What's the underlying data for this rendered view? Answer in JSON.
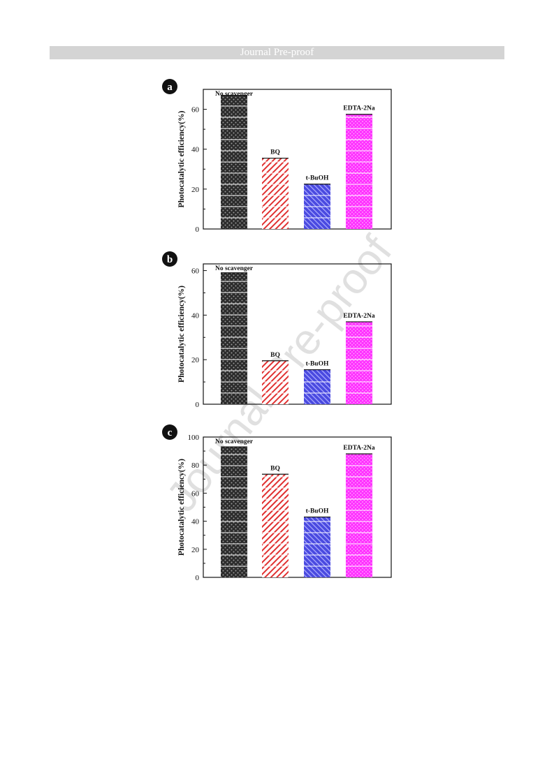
{
  "header": {
    "title": "Journal Pre-proof"
  },
  "watermark": {
    "text": "Journal Pre-proof"
  },
  "chart_data": [
    {
      "panel": "a",
      "type": "bar",
      "categories": [
        "No scavenger",
        "BQ",
        "t-BuOH",
        "EDTA-2Na"
      ],
      "values": [
        67,
        35.5,
        22.5,
        57.5
      ],
      "ylabel": "Photocatalytic efficiency(%)",
      "ylim": [
        0,
        70
      ],
      "yticks": [
        0,
        20,
        40,
        60
      ],
      "colors": [
        "#3a3a3a",
        "#e03030",
        "#4a4ae0",
        "#ff40ff"
      ]
    },
    {
      "panel": "b",
      "type": "bar",
      "categories": [
        "No scavenger",
        "BQ",
        "t-BuOH",
        "EDTA-2Na"
      ],
      "values": [
        59,
        19.5,
        15.5,
        37
      ],
      "ylabel": "Photocatalytic efficiency(%)",
      "ylim": [
        0,
        63
      ],
      "yticks": [
        0,
        20,
        40,
        60
      ],
      "colors": [
        "#3a3a3a",
        "#e03030",
        "#4a4ae0",
        "#ff40ff"
      ]
    },
    {
      "panel": "c",
      "type": "bar",
      "categories": [
        "No scavenger",
        "BQ",
        "t-BuOH",
        "EDTA-2Na"
      ],
      "values": [
        93,
        73.5,
        43,
        88
      ],
      "ylabel": "Photocatalytic efficiency(%)",
      "ylim": [
        0,
        100
      ],
      "yticks": [
        0,
        20,
        40,
        60,
        80,
        100
      ],
      "colors": [
        "#3a3a3a",
        "#e03030",
        "#4a4ae0",
        "#ff40ff"
      ]
    }
  ]
}
